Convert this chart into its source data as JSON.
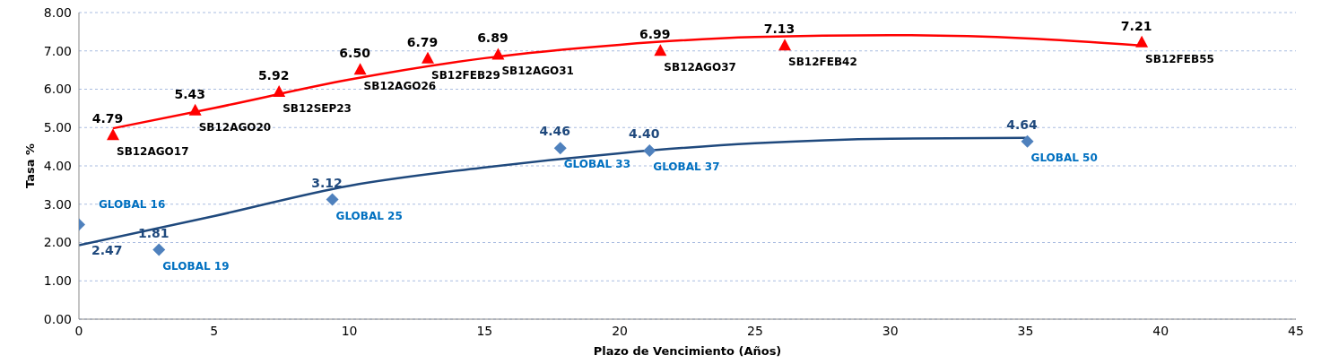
{
  "chart_data": {
    "type": "scatter",
    "xlabel": "Plazo de Vencimiento  (Años)",
    "ylabel": "Tasa %",
    "xlim": [
      0,
      45
    ],
    "xticks": [
      0,
      5,
      10,
      15,
      20,
      25,
      30,
      35,
      40,
      45
    ],
    "ylim": [
      0,
      8
    ],
    "yticks": [
      {
        "value": 0,
        "label": "0.00"
      },
      {
        "value": 1,
        "label": "1.00"
      },
      {
        "value": 2,
        "label": "2.00"
      },
      {
        "value": 3,
        "label": "3.00"
      },
      {
        "value": 4,
        "label": "4.00"
      },
      {
        "value": 5,
        "label": "5.00"
      },
      {
        "value": 6,
        "label": "6.00"
      },
      {
        "value": 7,
        "label": "7.00"
      },
      {
        "value": 8,
        "label": "8.00"
      }
    ],
    "grid": "y",
    "series": [
      {
        "marker": "triangle",
        "color": "#ff0000",
        "x": [
          1.26,
          4.3,
          7.4,
          10.4,
          12.9,
          15.5,
          21.5,
          26.1,
          39.3
        ],
        "values": [
          4.79,
          5.43,
          5.92,
          6.5,
          6.79,
          6.89,
          6.99,
          7.13,
          7.21
        ],
        "value_labels": [
          "4.79",
          "5.43",
          "5.92",
          "6.50",
          "6.79",
          "6.89",
          "6.99",
          "7.13",
          "7.21"
        ]
      },
      {
        "marker": "diamond",
        "color": "#4f81bd",
        "x": [
          0,
          2.96,
          9.37,
          17.8,
          21.1,
          35.07
        ],
        "values": [
          2.47,
          1.81,
          3.12,
          4.46,
          4.4,
          4.64
        ],
        "value_labels": [
          "2.47",
          "1.81",
          "3.12",
          "4.46",
          "4.40",
          "4.64"
        ]
      },
      {
        "type": "line",
        "color": "#ff0000",
        "x": [
          1.26,
          5,
          10,
          15,
          20,
          25,
          30,
          35,
          39.3
        ],
        "values": [
          4.98,
          5.51,
          6.25,
          6.81,
          7.16,
          7.36,
          7.41,
          7.33,
          7.14
        ]
      },
      {
        "type": "line",
        "color": "#1f497d",
        "x": [
          0,
          5,
          10,
          15,
          20,
          25,
          30,
          35,
          35.07
        ],
        "values": [
          1.93,
          2.69,
          3.48,
          3.96,
          4.33,
          4.59,
          4.71,
          4.73,
          4.7
        ]
      }
    ],
    "annotations": [
      {
        "text": "SB12AGO17",
        "x": 1.26,
        "y": 4.79
      },
      {
        "text": "SB12AGO20",
        "x": 4.3,
        "y": 5.43
      },
      {
        "text": "SB12SEP23",
        "x": 7.4,
        "y": 5.92
      },
      {
        "text": "SB12AGO26",
        "x": 10.4,
        "y": 6.5
      },
      {
        "text": "SB12FEB29",
        "x": 12.9,
        "y": 6.79
      },
      {
        "text": "SB12AGO31",
        "x": 15.5,
        "y": 6.89
      },
      {
        "text": "SB12AGO37",
        "x": 21.5,
        "y": 6.99
      },
      {
        "text": "SB12FEB42",
        "x": 26.1,
        "y": 7.13
      },
      {
        "text": "SB12FEB55",
        "x": 39.3,
        "y": 7.21
      },
      {
        "text": "GLOBAL 16",
        "x": 0,
        "y": 2.47
      },
      {
        "text": "GLOBAL 19",
        "x": 2.96,
        "y": 1.81
      },
      {
        "text": "GLOBAL 25",
        "x": 9.37,
        "y": 3.12
      },
      {
        "text": "GLOBAL 33",
        "x": 17.8,
        "y": 4.46
      },
      {
        "text": "GLOBAL 37",
        "x": 21.1,
        "y": 4.4
      },
      {
        "text": "GLOBAL 50",
        "x": 35.07,
        "y": 4.64
      }
    ]
  }
}
